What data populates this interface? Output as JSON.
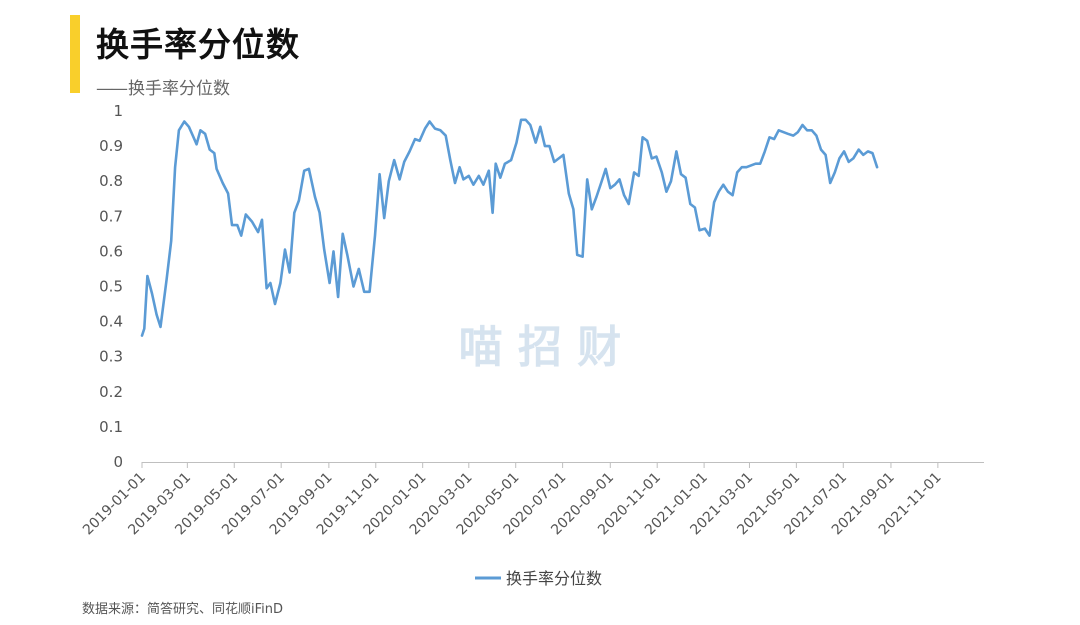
{
  "header": {
    "title": "换手率分位数",
    "subtitle_prefix": "——",
    "subtitle": "换手率分位数"
  },
  "watermark": "喵 招 财",
  "source": "数据来源：简答研究、同花顺iFinD",
  "colors": {
    "accent": "#f9cf2b",
    "line": "#5b9bd5",
    "watermark": "#c8d9ea"
  },
  "chart_data": {
    "type": "line",
    "ylim": [
      0,
      1
    ],
    "yticks": [
      {
        "v": 0,
        "label": "0"
      },
      {
        "v": 0.1,
        "label": "0.1"
      },
      {
        "v": 0.2,
        "label": "0.2"
      },
      {
        "v": 0.3,
        "label": "0.3"
      },
      {
        "v": 0.4,
        "label": "0.4"
      },
      {
        "v": 0.5,
        "label": "0.5"
      },
      {
        "v": 0.6,
        "label": "0.6"
      },
      {
        "v": 0.7,
        "label": "0.7"
      },
      {
        "v": 0.8,
        "label": "0.8"
      },
      {
        "v": 0.9,
        "label": "0.9"
      },
      {
        "v": 1,
        "label": "1"
      }
    ],
    "xlim": [
      "2019-01-01",
      "2021-12-31"
    ],
    "xticks": [
      "2019-01-01",
      "2019-03-01",
      "2019-05-01",
      "2019-07-01",
      "2019-09-01",
      "2019-11-01",
      "2020-01-01",
      "2020-03-01",
      "2020-05-01",
      "2020-07-01",
      "2020-09-01",
      "2020-11-01",
      "2021-01-01",
      "2021-03-01",
      "2021-05-01",
      "2021-07-01",
      "2021-09-01",
      "2021-11-01"
    ],
    "legend": "bottom-center",
    "series": [
      {
        "name": "换手率分位数",
        "points": [
          [
            "2019-01-01",
            0.36
          ],
          [
            "2019-01-04",
            0.38
          ],
          [
            "2019-01-08",
            0.53
          ],
          [
            "2019-01-14",
            0.48
          ],
          [
            "2019-01-20",
            0.42
          ],
          [
            "2019-01-25",
            0.385
          ],
          [
            "2019-02-02",
            0.52
          ],
          [
            "2019-02-08",
            0.63
          ],
          [
            "2019-02-13",
            0.84
          ],
          [
            "2019-02-18",
            0.945
          ],
          [
            "2019-02-25",
            0.97
          ],
          [
            "2019-03-03",
            0.955
          ],
          [
            "2019-03-08",
            0.93
          ],
          [
            "2019-03-13",
            0.905
          ],
          [
            "2019-03-18",
            0.945
          ],
          [
            "2019-03-24",
            0.935
          ],
          [
            "2019-03-30",
            0.89
          ],
          [
            "2019-04-05",
            0.88
          ],
          [
            "2019-04-08",
            0.835
          ],
          [
            "2019-04-16",
            0.795
          ],
          [
            "2019-04-23",
            0.765
          ],
          [
            "2019-04-28",
            0.675
          ],
          [
            "2019-05-05",
            0.675
          ],
          [
            "2019-05-10",
            0.645
          ],
          [
            "2019-05-16",
            0.705
          ],
          [
            "2019-05-24",
            0.685
          ],
          [
            "2019-06-01",
            0.655
          ],
          [
            "2019-06-06",
            0.69
          ],
          [
            "2019-06-12",
            0.495
          ],
          [
            "2019-06-17",
            0.51
          ],
          [
            "2019-06-23",
            0.45
          ],
          [
            "2019-06-30",
            0.51
          ],
          [
            "2019-07-06",
            0.605
          ],
          [
            "2019-07-12",
            0.54
          ],
          [
            "2019-07-18",
            0.71
          ],
          [
            "2019-07-24",
            0.745
          ],
          [
            "2019-07-31",
            0.83
          ],
          [
            "2019-08-06",
            0.835
          ],
          [
            "2019-08-14",
            0.755
          ],
          [
            "2019-08-20",
            0.71
          ],
          [
            "2019-08-26",
            0.605
          ],
          [
            "2019-09-02",
            0.51
          ],
          [
            "2019-09-07",
            0.6
          ],
          [
            "2019-09-13",
            0.47
          ],
          [
            "2019-09-19",
            0.65
          ],
          [
            "2019-09-25",
            0.59
          ],
          [
            "2019-10-03",
            0.5
          ],
          [
            "2019-10-10",
            0.55
          ],
          [
            "2019-10-17",
            0.485
          ],
          [
            "2019-10-24",
            0.485
          ],
          [
            "2019-10-31",
            0.645
          ],
          [
            "2019-11-06",
            0.82
          ],
          [
            "2019-11-12",
            0.695
          ],
          [
            "2019-11-18",
            0.8
          ],
          [
            "2019-11-25",
            0.86
          ],
          [
            "2019-12-02",
            0.805
          ],
          [
            "2019-12-08",
            0.855
          ],
          [
            "2019-12-15",
            0.885
          ],
          [
            "2019-12-22",
            0.92
          ],
          [
            "2019-12-28",
            0.915
          ],
          [
            "2020-01-04",
            0.95
          ],
          [
            "2020-01-10",
            0.97
          ],
          [
            "2020-01-17",
            0.95
          ],
          [
            "2020-01-24",
            0.945
          ],
          [
            "2020-01-31",
            0.93
          ],
          [
            "2020-02-06",
            0.86
          ],
          [
            "2020-02-12",
            0.795
          ],
          [
            "2020-02-18",
            0.84
          ],
          [
            "2020-02-23",
            0.805
          ],
          [
            "2020-03-01",
            0.815
          ],
          [
            "2020-03-07",
            0.79
          ],
          [
            "2020-03-14",
            0.815
          ],
          [
            "2020-03-20",
            0.79
          ],
          [
            "2020-03-27",
            0.83
          ],
          [
            "2020-04-01",
            0.71
          ],
          [
            "2020-04-05",
            0.85
          ],
          [
            "2020-04-11",
            0.81
          ],
          [
            "2020-04-17",
            0.85
          ],
          [
            "2020-04-25",
            0.86
          ],
          [
            "2020-05-02",
            0.91
          ],
          [
            "2020-05-08",
            0.975
          ],
          [
            "2020-05-14",
            0.975
          ],
          [
            "2020-05-20",
            0.96
          ],
          [
            "2020-05-27",
            0.91
          ],
          [
            "2020-06-02",
            0.955
          ],
          [
            "2020-06-08",
            0.9
          ],
          [
            "2020-06-14",
            0.9
          ],
          [
            "2020-06-20",
            0.855
          ],
          [
            "2020-06-26",
            0.865
          ],
          [
            "2020-07-02",
            0.875
          ],
          [
            "2020-07-09",
            0.765
          ],
          [
            "2020-07-15",
            0.72
          ],
          [
            "2020-07-20",
            0.59
          ],
          [
            "2020-07-27",
            0.585
          ],
          [
            "2020-08-02",
            0.805
          ],
          [
            "2020-08-08",
            0.72
          ],
          [
            "2020-08-14",
            0.755
          ],
          [
            "2020-08-20",
            0.795
          ],
          [
            "2020-08-26",
            0.835
          ],
          [
            "2020-09-01",
            0.78
          ],
          [
            "2020-09-07",
            0.79
          ],
          [
            "2020-09-13",
            0.805
          ],
          [
            "2020-09-19",
            0.76
          ],
          [
            "2020-09-25",
            0.735
          ],
          [
            "2020-10-02",
            0.825
          ],
          [
            "2020-10-08",
            0.815
          ],
          [
            "2020-10-13",
            0.925
          ],
          [
            "2020-10-19",
            0.915
          ],
          [
            "2020-10-25",
            0.865
          ],
          [
            "2020-10-31",
            0.87
          ],
          [
            "2020-11-07",
            0.825
          ],
          [
            "2020-11-13",
            0.77
          ],
          [
            "2020-11-19",
            0.8
          ],
          [
            "2020-11-26",
            0.885
          ],
          [
            "2020-12-02",
            0.82
          ],
          [
            "2020-12-08",
            0.81
          ],
          [
            "2020-12-14",
            0.735
          ],
          [
            "2020-12-20",
            0.725
          ],
          [
            "2020-12-26",
            0.66
          ],
          [
            "2021-01-02",
            0.665
          ],
          [
            "2021-01-08",
            0.645
          ],
          [
            "2021-01-14",
            0.74
          ],
          [
            "2021-01-20",
            0.77
          ],
          [
            "2021-01-26",
            0.79
          ],
          [
            "2021-02-01",
            0.77
          ],
          [
            "2021-02-07",
            0.76
          ],
          [
            "2021-02-13",
            0.825
          ],
          [
            "2021-02-19",
            0.84
          ],
          [
            "2021-02-25",
            0.84
          ],
          [
            "2021-03-03",
            0.845
          ],
          [
            "2021-03-09",
            0.85
          ],
          [
            "2021-03-15",
            0.85
          ],
          [
            "2021-03-21",
            0.885
          ],
          [
            "2021-03-27",
            0.925
          ],
          [
            "2021-04-02",
            0.92
          ],
          [
            "2021-04-08",
            0.945
          ],
          [
            "2021-04-14",
            0.94
          ],
          [
            "2021-04-20",
            0.935
          ],
          [
            "2021-04-27",
            0.93
          ],
          [
            "2021-05-03",
            0.94
          ],
          [
            "2021-05-09",
            0.96
          ],
          [
            "2021-05-15",
            0.945
          ],
          [
            "2021-05-21",
            0.945
          ],
          [
            "2021-05-27",
            0.93
          ],
          [
            "2021-06-02",
            0.89
          ],
          [
            "2021-06-08",
            0.875
          ],
          [
            "2021-06-14",
            0.795
          ],
          [
            "2021-06-20",
            0.825
          ],
          [
            "2021-06-26",
            0.865
          ],
          [
            "2021-07-02",
            0.885
          ],
          [
            "2021-07-08",
            0.855
          ],
          [
            "2021-07-14",
            0.865
          ],
          [
            "2021-07-21",
            0.89
          ],
          [
            "2021-07-27",
            0.875
          ],
          [
            "2021-08-02",
            0.885
          ],
          [
            "2021-08-08",
            0.88
          ],
          [
            "2021-08-14",
            0.84
          ]
        ]
      }
    ]
  }
}
